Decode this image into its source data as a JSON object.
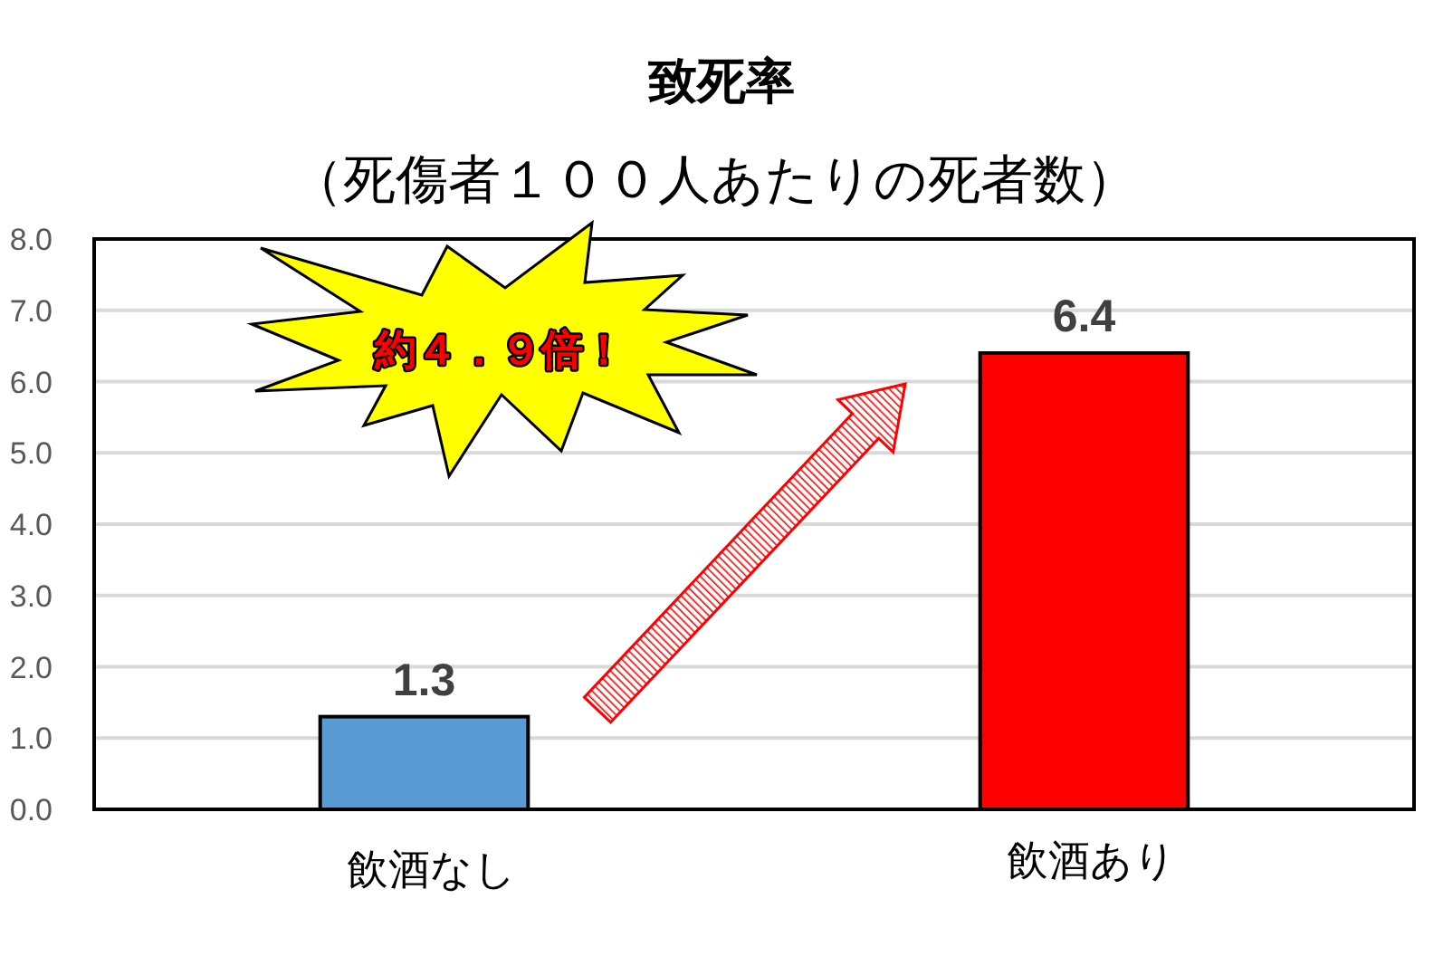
{
  "chart_data": {
    "type": "bar",
    "title": "致死率",
    "subtitle": "（死傷者１００人あたりの死者数）",
    "categories": [
      "飲酒なし",
      "飲酒あり"
    ],
    "values": [
      1.3,
      6.4
    ],
    "colors": [
      "#5b9bd5",
      "#ff0000"
    ],
    "ylim": [
      0,
      8
    ],
    "yticks": [
      {
        "value": 0,
        "label": "0.0"
      },
      {
        "value": 1,
        "label": "1.0"
      },
      {
        "value": 2,
        "label": "2.0"
      },
      {
        "value": 3,
        "label": "3.0"
      },
      {
        "value": 4,
        "label": "4.0"
      },
      {
        "value": 5,
        "label": "5.0"
      },
      {
        "value": 6,
        "label": "6.0"
      },
      {
        "value": 7,
        "label": "7.0"
      },
      {
        "value": 8,
        "label": "8.0"
      }
    ],
    "grid": "y",
    "data_labels": true,
    "annotations": [
      "約４．９倍！"
    ]
  }
}
